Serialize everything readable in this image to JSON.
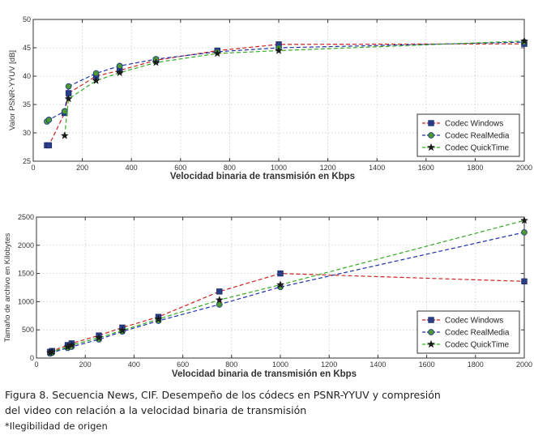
{
  "chart_data": [
    {
      "type": "line",
      "title": "",
      "xlabel": "Velocidad binaria de transmisión en Kbps",
      "ylabel": "Valor PSNR-YYUV [dB]",
      "xlim": [
        0,
        2000
      ],
      "ylim": [
        25,
        50
      ],
      "xticks": [
        0,
        200,
        400,
        600,
        800,
        1000,
        1200,
        1400,
        1600,
        1800,
        2000
      ],
      "yticks": [
        25,
        30,
        35,
        40,
        45,
        50
      ],
      "legend_position": "bottom-right",
      "series": [
        {
          "name": "Codec Windows",
          "color": "#cc2222",
          "marker": "square",
          "x": [
            56,
            64,
            128,
            144,
            256,
            352,
            500,
            750,
            1000,
            2000
          ],
          "y": [
            27.8,
            27.8,
            33.5,
            37.0,
            40.0,
            41.0,
            42.8,
            44.5,
            45.6,
            45.7
          ]
        },
        {
          "name": "Codec RealMedia",
          "color": "#2233aa",
          "marker": "circle",
          "x": [
            56,
            64,
            128,
            144,
            256,
            352,
            500,
            750,
            1000,
            2000
          ],
          "y": [
            32.0,
            32.3,
            33.8,
            38.2,
            40.5,
            41.8,
            43.0,
            44.3,
            45.0,
            46.0
          ]
        },
        {
          "name": "Codec QuickTime",
          "color": "#33aa22",
          "marker": "star",
          "x": [
            128,
            144,
            256,
            352,
            500,
            750,
            1000,
            2000
          ],
          "y": [
            29.5,
            36.0,
            39.2,
            40.6,
            42.4,
            44.0,
            44.5,
            46.2
          ]
        }
      ]
    },
    {
      "type": "line",
      "title": "",
      "xlabel": "Velocidad binaria de transmisión en Kbps",
      "ylabel": "Tamaño de archivo en Kilobytes",
      "xlim": [
        0,
        2000
      ],
      "ylim": [
        0,
        2500
      ],
      "xticks": [
        0,
        200,
        400,
        600,
        800,
        1000,
        1200,
        1400,
        1600,
        1800,
        2000
      ],
      "yticks": [
        0,
        500,
        1000,
        1500,
        2000,
        2500
      ],
      "legend_position": "bottom-right",
      "series": [
        {
          "name": "Codec Windows",
          "color": "#cc2222",
          "marker": "square",
          "x": [
            56,
            64,
            128,
            144,
            256,
            352,
            500,
            750,
            1000,
            2000
          ],
          "y": [
            110,
            125,
            230,
            260,
            400,
            540,
            730,
            1180,
            1500,
            1360
          ]
        },
        {
          "name": "Codec RealMedia",
          "color": "#2233aa",
          "marker": "circle",
          "x": [
            56,
            64,
            128,
            144,
            256,
            352,
            500,
            750,
            1000,
            2000
          ],
          "y": [
            80,
            95,
            180,
            200,
            330,
            470,
            660,
            950,
            1260,
            2230
          ]
        },
        {
          "name": "Codec QuickTime",
          "color": "#33aa22",
          "marker": "star",
          "x": [
            56,
            64,
            128,
            144,
            256,
            352,
            500,
            750,
            1000,
            2000
          ],
          "y": [
            95,
            110,
            200,
            230,
            360,
            490,
            690,
            1030,
            1300,
            2440
          ]
        }
      ]
    }
  ],
  "caption": {
    "line1": "Figura 8. Secuencia News, CIF. Desempeño de los códecs en PSNR-YYUV y compresión",
    "line2": "del video con relación a la velocidad binaria de transmisión",
    "note": "*Ilegibilidad de origen"
  }
}
